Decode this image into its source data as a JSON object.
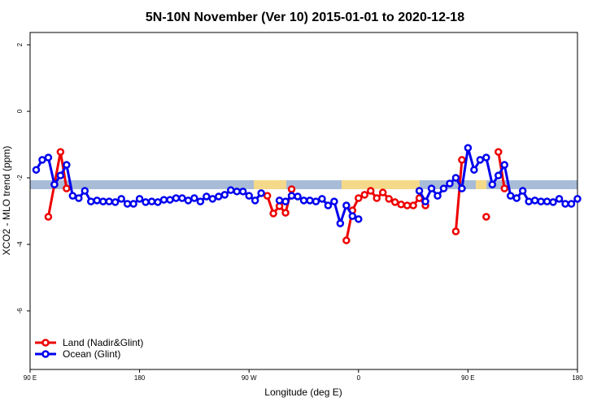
{
  "chart_data": {
    "type": "line",
    "title": "5N-10N November (Ver 10)   2015-01-01 to 2020-12-18",
    "x_label": "Longitude (deg E)",
    "y_label": "XCO2 - MLO trend (ppm)",
    "xlim": [
      90,
      540
    ],
    "ylim": [
      -7.76,
      2.37
    ],
    "xticks": [
      {
        "value": 90,
        "label": "90 E"
      },
      180,
      {
        "value": 270,
        "label": "90 W"
      },
      {
        "value": 360,
        "label": "0"
      },
      {
        "value": 450,
        "label": "90 E"
      },
      180
    ],
    "yticks": [
      -6,
      -4,
      -2,
      0,
      2
    ],
    "legend": "bottomleft",
    "x": [
      95,
      100,
      105,
      110,
      115,
      120,
      125,
      130,
      135,
      140,
      145,
      150,
      155,
      160,
      165,
      170,
      175,
      180,
      185,
      190,
      195,
      200,
      205,
      210,
      215,
      220,
      225,
      230,
      235,
      240,
      245,
      250,
      255,
      260,
      265,
      270,
      275,
      280,
      285,
      290,
      295,
      300,
      305,
      310,
      315,
      320,
      325,
      330,
      335,
      340,
      345,
      350,
      355,
      360,
      365,
      370,
      375,
      380,
      385,
      390,
      395,
      400,
      405,
      410,
      415,
      420,
      425,
      430,
      435,
      440,
      445,
      450,
      455,
      460,
      465,
      470,
      475,
      480,
      485,
      490,
      495,
      500,
      505,
      510,
      515,
      520,
      525,
      530,
      535,
      540
    ],
    "series": [
      {
        "name": "Land (Nadir&Glint)",
        "color": "#ee0000",
        "values": [
          null,
          null,
          -3.17,
          -2.2,
          -1.22,
          -2.32,
          null,
          null,
          null,
          null,
          null,
          null,
          null,
          null,
          null,
          null,
          null,
          null,
          null,
          null,
          null,
          null,
          null,
          null,
          null,
          null,
          null,
          null,
          null,
          null,
          null,
          null,
          null,
          null,
          null,
          null,
          null,
          null,
          -2.54,
          -3.07,
          -2.85,
          -3.05,
          -2.34,
          null,
          null,
          null,
          null,
          null,
          null,
          null,
          null,
          -3.88,
          -2.98,
          -2.61,
          -2.51,
          -2.39,
          -2.61,
          -2.44,
          -2.63,
          -2.73,
          -2.8,
          -2.83,
          -2.83,
          -2.61,
          -2.83,
          null,
          null,
          null,
          null,
          -3.61,
          -1.46,
          null,
          null,
          null,
          -3.17,
          null,
          -1.22,
          -2.32,
          null,
          null,
          null,
          null,
          null,
          null,
          null,
          null,
          null,
          null,
          null,
          null
        ]
      },
      {
        "name": "Ocean (Glint)",
        "color": "#0000ee",
        "values": [
          -1.76,
          -1.46,
          -1.39,
          -2.2,
          -1.93,
          -1.61,
          -2.54,
          -2.61,
          -2.39,
          -2.71,
          -2.68,
          -2.71,
          -2.71,
          -2.73,
          -2.63,
          -2.78,
          -2.78,
          -2.63,
          -2.73,
          -2.71,
          -2.73,
          -2.66,
          -2.66,
          -2.61,
          -2.61,
          -2.68,
          -2.61,
          -2.71,
          -2.56,
          -2.63,
          -2.56,
          -2.51,
          -2.37,
          -2.41,
          -2.41,
          -2.54,
          -2.68,
          -2.46,
          null,
          null,
          -2.68,
          -2.71,
          -2.54,
          -2.56,
          -2.68,
          -2.68,
          -2.71,
          -2.63,
          -2.83,
          -2.71,
          -3.37,
          -2.83,
          -3.15,
          -3.24,
          null,
          null,
          null,
          null,
          null,
          null,
          null,
          null,
          null,
          -2.39,
          -2.71,
          -2.32,
          -2.54,
          -2.32,
          -2.17,
          -2.0,
          -2.32,
          -1.1,
          -1.76,
          -1.46,
          -1.39,
          -2.2,
          -1.93,
          -1.61,
          -2.54,
          -2.61,
          -2.39,
          -2.71,
          -2.68,
          -2.71,
          -2.71,
          -2.73,
          -2.63,
          -2.78,
          -2.78,
          -2.63
        ]
      }
    ]
  }
}
